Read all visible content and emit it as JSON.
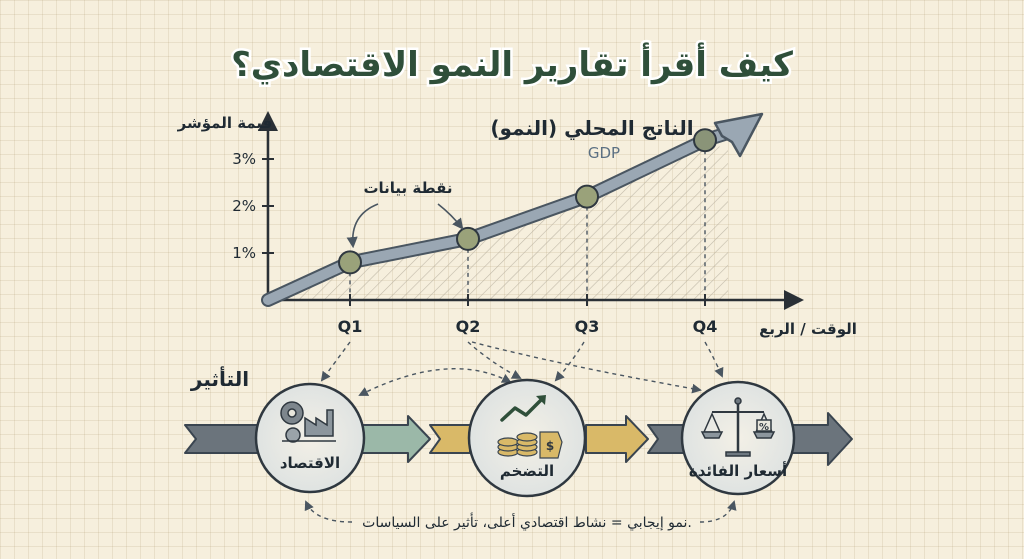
{
  "title": "كيف أقرأ تقارير النمو الاقتصادي؟",
  "chart_data": {
    "type": "line",
    "title": "الناتج المحلي (النمو)",
    "subtitle": "GDP",
    "ylabel": "قيمة المؤشر",
    "xlabel": "الوقت / الربع",
    "categories": [
      "Q1",
      "Q2",
      "Q3",
      "Q4"
    ],
    "values": [
      0.8,
      1.3,
      2.2,
      3.4
    ],
    "y_ticks": [
      "1%",
      "2%",
      "3%"
    ],
    "ylim": [
      0,
      4
    ],
    "annotation": "نقطة بيانات"
  },
  "impact": {
    "title": "التأثير",
    "items": [
      {
        "label": "الاقتصاد",
        "icon": "gears-factory-icon"
      },
      {
        "label": "التضخم",
        "icon": "coins-growth-icon"
      },
      {
        "label": "أسعار الفائدة",
        "icon": "scales-percent-icon"
      }
    ],
    "footer": "نمو إيجابي = نشاط اقتصادي أعلى، تأثير على السياسات."
  },
  "colors": {
    "line": "#8a9aa8",
    "point": "#9aa27a",
    "arrow_gray": "#6b747c",
    "arrow_green": "#9bb8a8",
    "arrow_gold": "#d9b968",
    "title_green": "#2f4f3a"
  }
}
